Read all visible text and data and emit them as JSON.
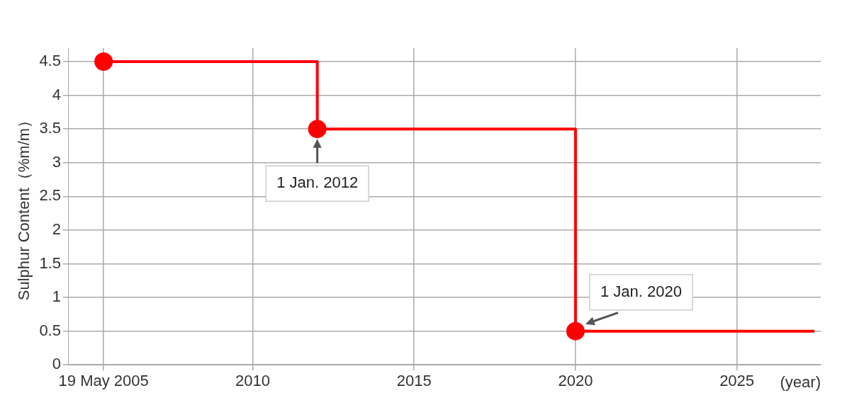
{
  "chart_data": {
    "type": "step",
    "series": [
      {
        "type": "step",
        "color": "#ff0000",
        "x": [
          2005.38,
          2012,
          2020,
          2027.4
        ],
        "values": [
          4.5,
          3.5,
          0.5,
          0.5
        ],
        "marker": "none"
      },
      {
        "type": "scatter",
        "color": "#ff0000",
        "x": [
          2005.38,
          2012,
          2020
        ],
        "values": [
          4.5,
          3.5,
          0.5
        ],
        "marker": "circle"
      }
    ],
    "xlabel": "(year)",
    "ylabel": "Sulphur Content（%m/m）",
    "xlim": [
      2004.3,
      2027.6
    ],
    "xticks": [
      {
        "value": 2005.38,
        "label": "19 May 2005"
      },
      2010,
      2015,
      2020,
      2025
    ],
    "ylim": [
      0,
      4.7
    ],
    "yticks": [
      0,
      0.5,
      1,
      1.5,
      2,
      2.5,
      3,
      3.5,
      4,
      4.5
    ],
    "grid": true,
    "legend": false,
    "annotations": [
      {
        "text": "1 Jan. 2012",
        "x": 2012,
        "y": 3.5
      },
      {
        "text": "1 Jan. 2020",
        "x": 2020,
        "y": 0.5
      }
    ]
  }
}
